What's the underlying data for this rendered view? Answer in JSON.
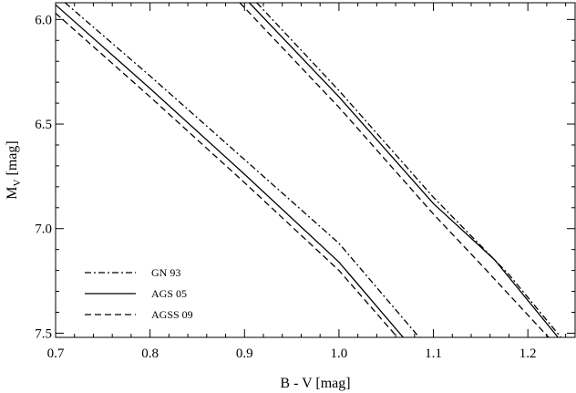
{
  "chart_data": {
    "type": "line",
    "title": "",
    "xlabel": "B - V [mag]",
    "ylabel_main": "M",
    "ylabel_sub": "V",
    "ylabel_unit": " [mag]",
    "xlim": [
      0.7,
      1.25
    ],
    "ylim": [
      5.92,
      7.52
    ],
    "y_inverted": true,
    "grid": false,
    "legend_position": "bottom-left",
    "xticks": [
      0.7,
      0.8,
      0.9,
      1.0,
      1.1,
      1.2
    ],
    "xtick_labels": [
      "0.7",
      "0.8",
      "0.9",
      "1.0",
      "1.1",
      "1.2"
    ],
    "yticks": [
      6.0,
      6.5,
      7.0,
      7.5
    ],
    "ytick_labels": [
      "6.0",
      "6.5",
      "7.0",
      "7.5"
    ],
    "series": [
      {
        "name": "GN 93",
        "style": "dashdot",
        "tracks": [
          [
            [
              0.71,
              5.92
            ],
            [
              0.8,
              6.27
            ],
            [
              0.9,
              6.67
            ],
            [
              1.0,
              7.07
            ],
            [
              1.085,
              7.52
            ]
          ],
          [
            [
              0.913,
              5.92
            ],
            [
              1.0,
              6.34
            ],
            [
              1.1,
              6.85
            ],
            [
              1.18,
              7.22
            ],
            [
              1.235,
              7.52
            ]
          ]
        ]
      },
      {
        "name": "AGS 05",
        "style": "solid",
        "tracks": [
          [
            [
              0.7,
              5.93
            ],
            [
              0.8,
              6.33
            ],
            [
              0.9,
              6.74
            ],
            [
              1.0,
              7.16
            ],
            [
              1.068,
              7.52
            ]
          ],
          [
            [
              0.905,
              5.92
            ],
            [
              1.0,
              6.37
            ],
            [
              1.1,
              6.88
            ],
            [
              1.165,
              7.15
            ],
            [
              1.232,
              7.52
            ]
          ]
        ]
      },
      {
        "name": "AGSS 09",
        "style": "dashed",
        "tracks": [
          [
            [
              0.7,
              5.97
            ],
            [
              0.8,
              6.37
            ],
            [
              0.9,
              6.78
            ],
            [
              1.0,
              7.2
            ],
            [
              1.062,
              7.52
            ]
          ],
          [
            [
              0.895,
              5.92
            ],
            [
              1.0,
              6.42
            ],
            [
              1.1,
              6.93
            ],
            [
              1.15,
              7.17
            ],
            [
              1.222,
              7.52
            ]
          ]
        ]
      }
    ]
  }
}
